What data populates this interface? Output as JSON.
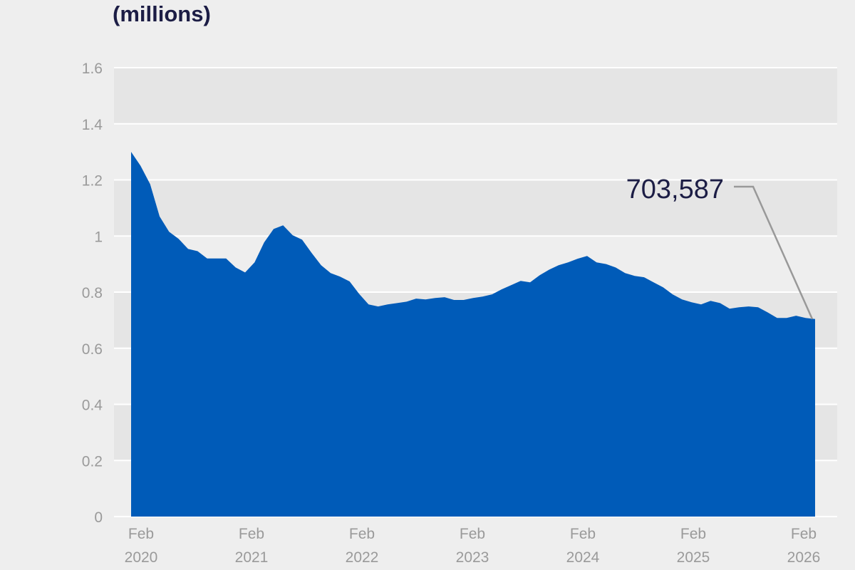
{
  "chart_data": {
    "type": "area",
    "title": "",
    "ylabel": "(millions)",
    "xlabel": "",
    "ylim": [
      0,
      1.6
    ],
    "yticks": [
      "0",
      "0.2",
      "0.4",
      "0.6",
      "0.8",
      "1",
      "1.2",
      "1.4",
      "1.6"
    ],
    "xticks": [
      {
        "month": "Feb",
        "year": "2020"
      },
      {
        "month": "Feb",
        "year": "2021"
      },
      {
        "month": "Feb",
        "year": "2022"
      },
      {
        "month": "Feb",
        "year": "2023"
      },
      {
        "month": "Feb",
        "year": "2024"
      },
      {
        "month": "Feb",
        "year": "2025"
      },
      {
        "month": "Feb",
        "year": "2026"
      }
    ],
    "x_start": "2020-02",
    "x_end": "2026-02",
    "frequency": "monthly",
    "values": [
      1.3,
      1.25,
      1.185,
      1.07,
      1.015,
      0.99,
      0.954,
      0.946,
      0.92,
      0.92,
      0.92,
      0.888,
      0.87,
      0.906,
      0.977,
      1.025,
      1.038,
      1.003,
      0.987,
      0.94,
      0.896,
      0.868,
      0.855,
      0.838,
      0.794,
      0.756,
      0.749,
      0.756,
      0.761,
      0.766,
      0.777,
      0.774,
      0.779,
      0.782,
      0.772,
      0.772,
      0.779,
      0.784,
      0.792,
      0.81,
      0.825,
      0.84,
      0.835,
      0.86,
      0.88,
      0.896,
      0.906,
      0.919,
      0.929,
      0.906,
      0.9,
      0.888,
      0.868,
      0.858,
      0.853,
      0.835,
      0.817,
      0.792,
      0.774,
      0.764,
      0.756,
      0.769,
      0.761,
      0.741,
      0.746,
      0.749,
      0.746,
      0.728,
      0.708,
      0.708,
      0.716,
      0.708,
      0.704
    ],
    "annotation": "703,587",
    "grid": true,
    "colors": {
      "fill": "#005bb8",
      "text": "#1c1d45",
      "tick": "#9a9a9a",
      "band": "#e5e5e5",
      "background": "#eeeeee"
    }
  }
}
